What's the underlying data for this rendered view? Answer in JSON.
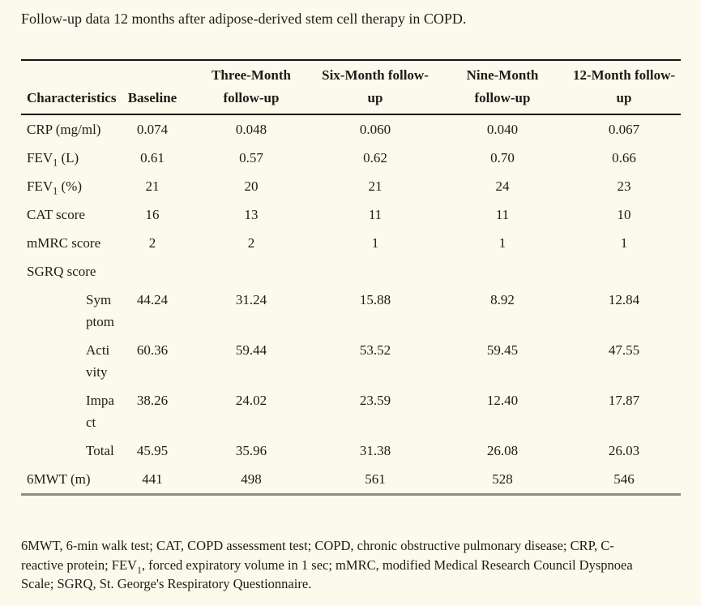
{
  "page": {
    "background_color": "#fcfaec",
    "text_color": "#1e1c16",
    "rule_color_dark": "#17150e",
    "rule_color_bottom": "#8d8d82"
  },
  "title": "Follow-up data 12 months after adipose-derived stem cell therapy in COPD.",
  "table": {
    "headers": [
      {
        "text": "Characteristics"
      },
      {
        "text": "Baseline"
      },
      {
        "text": "Three-Month\nfollow-up"
      },
      {
        "text": "Six-Month follow-\nup"
      },
      {
        "text": "Nine-Month\nfollow-up"
      },
      {
        "text": "12-Month follow-\nup"
      }
    ],
    "rows": [
      {
        "label": [
          {
            "t": "CRP (mg/ml)"
          }
        ],
        "indent": false,
        "values": [
          "0.074",
          "0.048",
          "0.060",
          "0.040",
          "0.067"
        ]
      },
      {
        "label": [
          {
            "t": "FEV"
          },
          {
            "t": "1",
            "sub": true
          },
          {
            "t": " (L)"
          }
        ],
        "indent": false,
        "values": [
          "0.61",
          "0.57",
          "0.62",
          "0.70",
          "0.66"
        ]
      },
      {
        "label": [
          {
            "t": "FEV"
          },
          {
            "t": "1",
            "sub": true
          },
          {
            "t": " (%)"
          }
        ],
        "indent": false,
        "values": [
          "21",
          "20",
          "21",
          "24",
          "23"
        ]
      },
      {
        "label": [
          {
            "t": "CAT score"
          }
        ],
        "indent": false,
        "values": [
          "16",
          "13",
          "11",
          "11",
          "10"
        ]
      },
      {
        "label": [
          {
            "t": "mMRC score"
          }
        ],
        "indent": false,
        "values": [
          "2",
          "2",
          "1",
          "1",
          "1"
        ]
      },
      {
        "label": [
          {
            "t": "SGRQ score"
          }
        ],
        "indent": false,
        "values": [
          "",
          "",
          "",
          "",
          ""
        ]
      },
      {
        "label": [
          {
            "t": "Sym\nptom"
          }
        ],
        "indent": true,
        "values": [
          "44.24",
          "31.24",
          "15.88",
          "8.92",
          "12.84"
        ]
      },
      {
        "label": [
          {
            "t": "Acti\nvity"
          }
        ],
        "indent": true,
        "values": [
          "60.36",
          "59.44",
          "53.52",
          "59.45",
          "47.55"
        ]
      },
      {
        "label": [
          {
            "t": "Impa\nct"
          }
        ],
        "indent": true,
        "values": [
          "38.26",
          "24.02",
          "23.59",
          "12.40",
          "17.87"
        ]
      },
      {
        "label": [
          {
            "t": "Total"
          }
        ],
        "indent": true,
        "values": [
          "45.95",
          "35.96",
          "31.38",
          "26.08",
          "26.03"
        ]
      },
      {
        "label": [
          {
            "t": "6MWT (m)"
          }
        ],
        "indent": false,
        "values": [
          "441",
          "498",
          "561",
          "528",
          "546"
        ]
      }
    ]
  },
  "footnote": {
    "line1": "6MWT, 6-min walk test; CAT, COPD assessment test; COPD, chronic obstructive pulmonary disease; CRP, C-",
    "line2_pre": "reactive protein; FEV",
    "line2_sub": "1",
    "line2_post": ", forced expiratory volume in 1 sec; mMRC, modified Medical Research Council Dyspnoea",
    "line3": "Scale; SGRQ, St. George's Respiratory Questionnaire."
  }
}
